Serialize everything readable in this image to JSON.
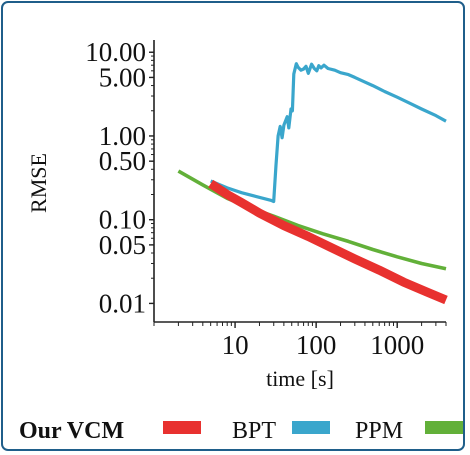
{
  "chart_data": {
    "type": "line",
    "xlabel": "time [s]",
    "ylabel": "RMSE",
    "x_scale": "log",
    "y_scale": "log",
    "xlim": [
      1.0,
      4000
    ],
    "ylim": [
      0.006,
      14
    ],
    "x_ticks": [
      {
        "value": 10,
        "label": "10"
      },
      {
        "value": 100,
        "label": "100"
      },
      {
        "value": 1000,
        "label": "1000"
      }
    ],
    "y_ticks": [
      {
        "value": 10,
        "label": "10.00"
      },
      {
        "value": 5,
        "label": "5.00"
      },
      {
        "value": 1,
        "label": "1.00"
      },
      {
        "value": 0.5,
        "label": "0.50"
      },
      {
        "value": 0.1,
        "label": "0.10"
      },
      {
        "value": 0.05,
        "label": "0.05"
      },
      {
        "value": 0.01,
        "label": "0.01"
      }
    ],
    "grid": false,
    "legend_position": "bottom",
    "series": [
      {
        "name": "Our VCM",
        "label_bold": true,
        "color": "#e8312f",
        "points": [
          [
            5,
            0.27
          ],
          [
            8,
            0.2
          ],
          [
            12,
            0.16
          ],
          [
            20,
            0.12
          ],
          [
            40,
            0.085
          ],
          [
            80,
            0.063
          ],
          [
            150,
            0.047
          ],
          [
            300,
            0.034
          ],
          [
            600,
            0.025
          ],
          [
            1200,
            0.018
          ],
          [
            2400,
            0.0135
          ],
          [
            4000,
            0.011
          ]
        ]
      },
      {
        "name": "BPT",
        "label_bold": false,
        "color": "#3aa6cc",
        "points": [
          [
            5,
            0.29
          ],
          [
            8,
            0.24
          ],
          [
            12,
            0.21
          ],
          [
            18,
            0.19
          ],
          [
            28,
            0.17
          ],
          [
            30,
            0.165
          ],
          [
            32,
            0.45
          ],
          [
            34,
            1.0
          ],
          [
            36,
            1.3
          ],
          [
            38,
            0.95
          ],
          [
            40,
            1.35
          ],
          [
            44,
            1.7
          ],
          [
            46,
            1.25
          ],
          [
            49,
            2.1
          ],
          [
            51,
            2.0
          ],
          [
            53,
            5.5
          ],
          [
            57,
            7.3
          ],
          [
            60,
            6.6
          ],
          [
            65,
            6.1
          ],
          [
            70,
            6.3
          ],
          [
            75,
            6.8
          ],
          [
            80,
            5.6
          ],
          [
            88,
            7.2
          ],
          [
            95,
            6.4
          ],
          [
            102,
            6.0
          ],
          [
            108,
            6.9
          ],
          [
            115,
            6.5
          ],
          [
            125,
            7.0
          ],
          [
            140,
            6.4
          ],
          [
            170,
            6.1
          ],
          [
            200,
            5.7
          ],
          [
            250,
            5.4
          ],
          [
            300,
            5.0
          ],
          [
            400,
            4.4
          ],
          [
            500,
            4.0
          ],
          [
            700,
            3.4
          ],
          [
            1000,
            2.9
          ],
          [
            1500,
            2.4
          ],
          [
            2000,
            2.1
          ],
          [
            3000,
            1.75
          ],
          [
            4000,
            1.5
          ]
        ]
      },
      {
        "name": "PPM",
        "label_bold": false,
        "color": "#62b039",
        "points": [
          [
            2,
            0.38
          ],
          [
            4,
            0.26
          ],
          [
            8,
            0.18
          ],
          [
            15,
            0.14
          ],
          [
            30,
            0.11
          ],
          [
            60,
            0.085
          ],
          [
            120,
            0.068
          ],
          [
            250,
            0.055
          ],
          [
            500,
            0.044
          ],
          [
            1000,
            0.036
          ],
          [
            2000,
            0.03
          ],
          [
            4000,
            0.026
          ]
        ]
      }
    ]
  }
}
